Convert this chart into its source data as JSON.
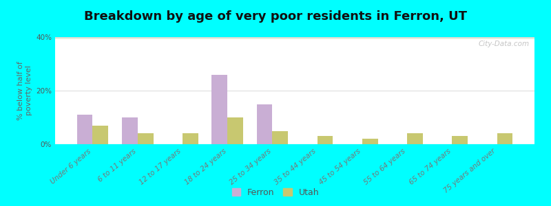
{
  "title": "Breakdown by age of very poor residents in Ferron, UT",
  "ylabel": "% below half of\npoverty level",
  "categories": [
    "Under 6 years",
    "6 to 11 years",
    "12 to 17 years",
    "18 to 24 years",
    "25 to 34 years",
    "35 to 44 years",
    "45 to 54 years",
    "55 to 64 years",
    "65 to 74 years",
    "75 years and over"
  ],
  "ferron_values": [
    11,
    10,
    0,
    26,
    15,
    0,
    0,
    0,
    0,
    0
  ],
  "utah_values": [
    7,
    4,
    4,
    10,
    5,
    3,
    2,
    4,
    3,
    4
  ],
  "ferron_color": "#c9aed4",
  "utah_color": "#c8c870",
  "background_outer": "#00ffff",
  "background_inner_top": "#eef4e4",
  "background_inner_bottom": "#e4eedc",
  "ylim": [
    0,
    40
  ],
  "yticks": [
    0,
    20,
    40
  ],
  "ytick_labels": [
    "0%",
    "20%",
    "40%"
  ],
  "bar_width": 0.35,
  "title_fontsize": 13,
  "axis_label_fontsize": 8,
  "tick_fontsize": 7.5,
  "legend_labels": [
    "Ferron",
    "Utah"
  ],
  "watermark": "City-Data.com"
}
